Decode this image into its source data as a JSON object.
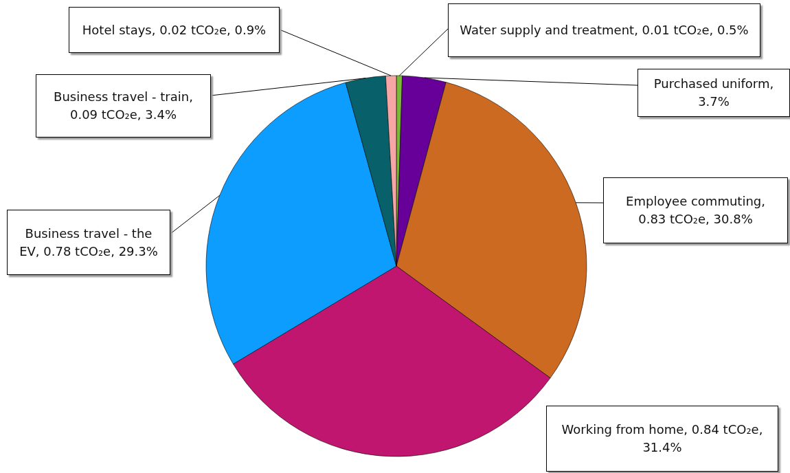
{
  "chart_data": {
    "type": "pie",
    "categories": [
      "Water supply and treatment, 0.01 tCO₂e, 0.5%",
      "Purchased uniform, 3.7%",
      "Employee commuting, 0.83 tCO₂e, 30.8%",
      "Working from home, 0.84 tCO₂e, 31.4%",
      "Business travel - the EV, 0.78 tCO₂e, 29.3%",
      "Business travel - train, 0.09 tCO₂e, 3.4%",
      "Hotel stays, 0.02 tCO₂e, 0.9%"
    ],
    "values": [
      0.5,
      3.7,
      30.8,
      31.4,
      29.3,
      3.4,
      0.9
    ],
    "colors": [
      "#7cb83a",
      "#660099",
      "#cc6a22",
      "#c0166f",
      "#0c9dff",
      "#08616a",
      "#f7a6a6"
    ]
  }
}
